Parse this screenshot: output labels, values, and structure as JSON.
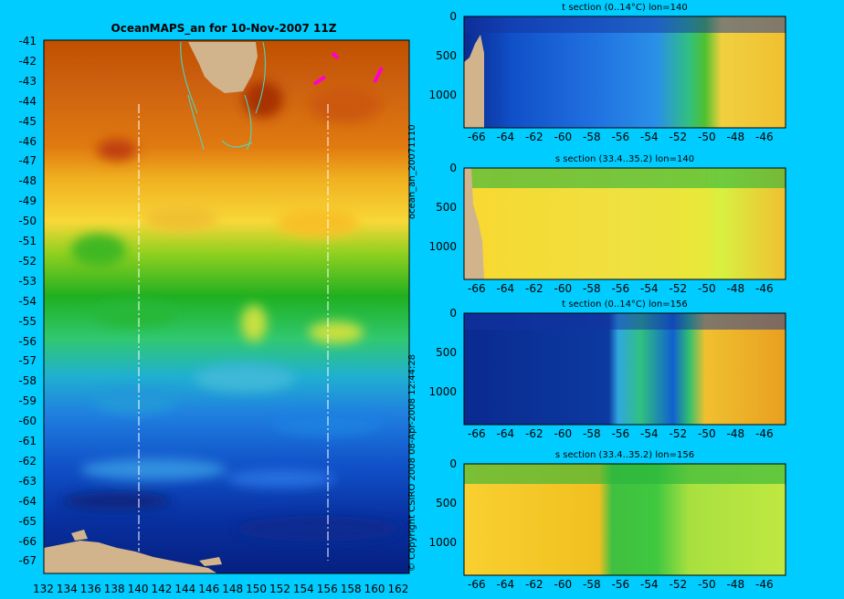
{
  "map": {
    "title": "OceanMAPS_an for 10-Nov-2007 11Z",
    "lat_ticks": [
      "-41",
      "-42",
      "-43",
      "-44",
      "-45",
      "-46",
      "-47",
      "-48",
      "-49",
      "-50",
      "-51",
      "-52",
      "-53",
      "-54",
      "-55",
      "-56",
      "-57",
      "-58",
      "-59",
      "-60",
      "-61",
      "-62",
      "-63",
      "-64",
      "-65",
      "-66",
      "-67"
    ],
    "lon_ticks": [
      "132",
      "134",
      "136",
      "138",
      "140",
      "142",
      "144",
      "146",
      "148",
      "150",
      "152",
      "154",
      "156",
      "158",
      "160",
      "162"
    ],
    "section_lons": [
      "140",
      "156"
    ],
    "side_label": "ocean_an_20071110",
    "copyright": "© Copyright CSIRO 2008   08-Apr-2008 12:44:28"
  },
  "sections": [
    {
      "title": "t section (0..14°C) lon=140",
      "kind": "t",
      "lon": 140
    },
    {
      "title": "s section (33.4..35.2) lon=140",
      "kind": "s",
      "lon": 140
    },
    {
      "title": "t section (0..14°C) lon=156",
      "kind": "t",
      "lon": 156
    },
    {
      "title": "s section (33.4..35.2) lon=156",
      "kind": "s",
      "lon": 156
    }
  ],
  "section_axes": {
    "lat_ticks": [
      "-66",
      "-64",
      "-62",
      "-60",
      "-58",
      "-56",
      "-54",
      "-52",
      "-50",
      "-48",
      "-46"
    ],
    "depth_ticks": [
      "0",
      "500",
      "1000"
    ]
  },
  "colors": {
    "background": "#00ccff",
    "land": "#d2b48c",
    "coast": "#40e0d0",
    "marker": "#ff00cc"
  }
}
